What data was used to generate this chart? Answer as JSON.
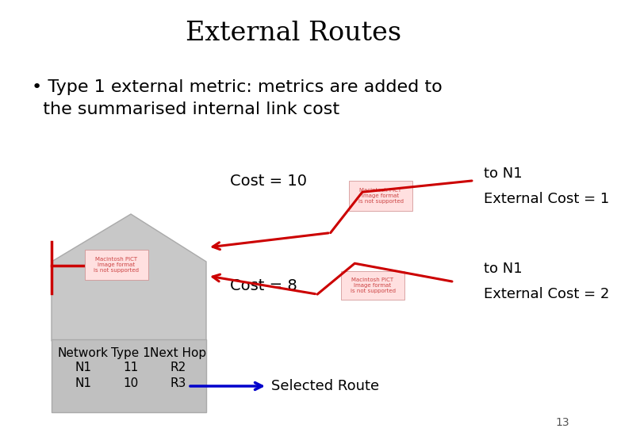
{
  "title": "External Routes",
  "bullet_text_line1": "• Type 1 external metric: metrics are added to",
  "bullet_text_line2": "  the summarised internal link cost",
  "cost10_label": "Cost = 10",
  "cost8_label": "Cost = 8",
  "to_n1_top_line1": "to N1",
  "to_n1_top_line2": "External Cost = 1",
  "to_n1_bot_line1": "to N1",
  "to_n1_bot_line2": "External Cost = 2",
  "table_headers": [
    "Network",
    "Type 1",
    "Next Hop"
  ],
  "table_row1": [
    "N1",
    "11",
    "R2"
  ],
  "table_row2": [
    "N1",
    "10",
    "R3"
  ],
  "selected_route_label": "Selected Route",
  "page_num": "13",
  "bg_color": "#ffffff",
  "title_color": "#000000",
  "bullet_color": "#000000",
  "arrow_color": "#cc0000",
  "blue_arrow_color": "#0000cc",
  "table_bg": "#c0c0c0",
  "house_color": "#c8c8c8",
  "red_line_color": "#cc0000",
  "mac_text_color": "#cc4444",
  "mac_box_color": "#ffe0e0",
  "mac_border_color": "#cc8888"
}
